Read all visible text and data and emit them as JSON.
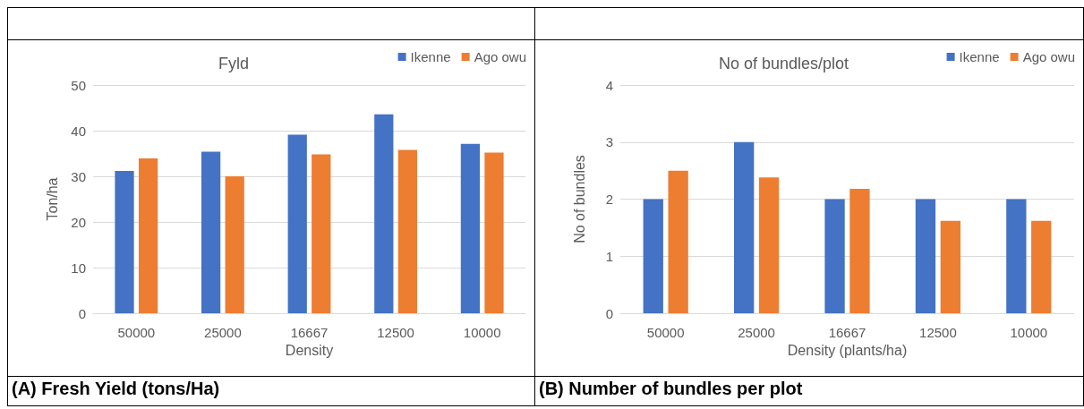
{
  "chart_data": [
    {
      "type": "bar",
      "title": "Fyld",
      "xlabel": "Density",
      "ylabel": "Ton/ha",
      "categories": [
        "50000",
        "25000",
        "16667",
        "12500",
        "10000"
      ],
      "series": [
        {
          "name": "Ikenne",
          "color": "#4472c4",
          "values": [
            31.2,
            35.4,
            39.1,
            43.6,
            37.1
          ]
        },
        {
          "name": "Ago owu",
          "color": "#ed7d31",
          "values": [
            33.9,
            30.0,
            34.8,
            35.8,
            35.2
          ]
        }
      ],
      "ylim": [
        0,
        50
      ],
      "yticks": [
        0,
        10,
        20,
        30,
        40,
        50
      ],
      "grid": "y",
      "legend": "top right",
      "annotations": [
        "(A) Fresh Yield (tons/Ha)"
      ]
    },
    {
      "type": "bar",
      "title": "No of bundles/plot",
      "xlabel": "Density (plants/ha)",
      "ylabel": "No of bundles",
      "categories": [
        "50000",
        "25000",
        "16667",
        "12500",
        "10000"
      ],
      "series": [
        {
          "name": "Ikenne",
          "color": "#4472c4",
          "values": [
            2,
            3,
            2,
            2,
            2
          ]
        },
        {
          "name": "Ago owu",
          "color": "#ed7d31",
          "values": [
            2.5,
            2.38,
            2.18,
            1.62,
            1.62
          ]
        }
      ],
      "ylim": [
        0,
        4
      ],
      "yticks": [
        0,
        1,
        2,
        3,
        4
      ],
      "grid": "y",
      "legend": "top right",
      "annotations": [
        "(B) Number of bundles per plot"
      ]
    }
  ]
}
